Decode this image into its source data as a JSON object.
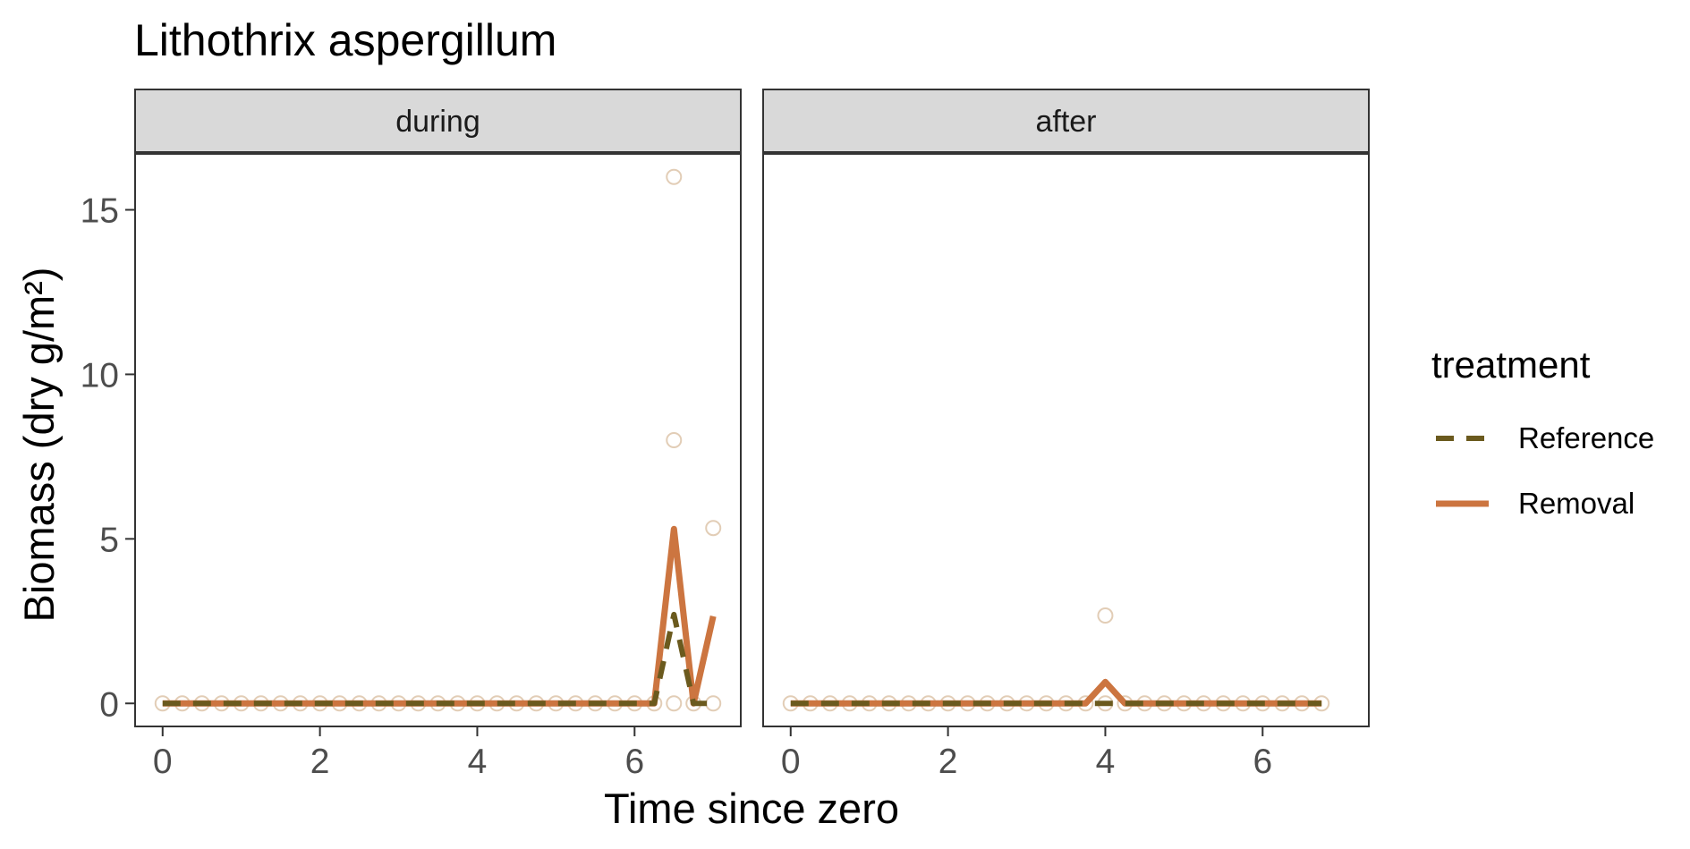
{
  "chart_data": {
    "type": "line",
    "title": "Lithothrix aspergillum",
    "xlabel": "Time since zero",
    "ylabel": "Biomass (dry g/m²)",
    "ylim": [
      -0.7,
      16.7
    ],
    "y_ticks": [
      0,
      5,
      10,
      15
    ],
    "y_tick_labels": [
      "0",
      "5",
      "10",
      "15"
    ],
    "grid": false,
    "colors": {
      "Reference": "#6B5A1E",
      "Removal": "#CC7540",
      "points": "#E2CDB6",
      "strip_bg": "#D9D9D9",
      "strip_border": "#333333",
      "panel_border": "#333333"
    },
    "legend": {
      "title": "treatment",
      "position": "right",
      "entries": [
        {
          "label": "Reference",
          "linetype": "dashed",
          "color": "#6B5A1E"
        },
        {
          "label": "Removal",
          "linetype": "solid",
          "color": "#CC7540"
        }
      ]
    },
    "panels": [
      {
        "strip": "during",
        "xlim": [
          -0.35,
          7.35
        ],
        "x_ticks": [
          0,
          2,
          4,
          6
        ],
        "x_tick_labels": [
          "0",
          "2",
          "4",
          "6"
        ],
        "series": [
          {
            "name": "Reference",
            "x": [
              0,
              0.25,
              0.5,
              0.75,
              1.0,
              1.25,
              1.5,
              1.75,
              2.0,
              2.25,
              2.5,
              2.75,
              3.0,
              3.25,
              3.5,
              3.75,
              4.0,
              4.25,
              4.5,
              4.75,
              5.0,
              5.25,
              5.5,
              5.75,
              6.0,
              6.25,
              6.5,
              6.75,
              7.0
            ],
            "y": [
              0,
              0,
              0,
              0,
              0,
              0,
              0,
              0,
              0,
              0,
              0,
              0,
              0,
              0,
              0,
              0,
              0,
              0,
              0,
              0,
              0,
              0,
              0,
              0,
              0,
              0,
              2.7,
              0,
              0
            ]
          },
          {
            "name": "Removal",
            "x": [
              0,
              0.25,
              0.5,
              0.75,
              1.0,
              1.25,
              1.5,
              1.75,
              2.0,
              2.25,
              2.5,
              2.75,
              3.0,
              3.25,
              3.5,
              3.75,
              4.0,
              4.25,
              4.5,
              4.75,
              5.0,
              5.25,
              5.5,
              5.75,
              6.0,
              6.25,
              6.5,
              6.75,
              7.0
            ],
            "y": [
              0,
              0,
              0,
              0,
              0,
              0,
              0,
              0,
              0,
              0,
              0,
              0,
              0,
              0,
              0,
              0,
              0,
              0,
              0,
              0,
              0,
              0,
              0,
              0,
              0,
              0,
              5.3,
              0,
              2.65
            ]
          }
        ],
        "points": [
          [
            0,
            0
          ],
          [
            0.25,
            0
          ],
          [
            0.5,
            0
          ],
          [
            0.75,
            0
          ],
          [
            1.0,
            0
          ],
          [
            1.25,
            0
          ],
          [
            1.5,
            0
          ],
          [
            1.75,
            0
          ],
          [
            2.0,
            0
          ],
          [
            2.25,
            0
          ],
          [
            2.5,
            0
          ],
          [
            2.75,
            0
          ],
          [
            3.0,
            0
          ],
          [
            3.25,
            0
          ],
          [
            3.5,
            0
          ],
          [
            3.75,
            0
          ],
          [
            4.0,
            0
          ],
          [
            4.25,
            0
          ],
          [
            4.5,
            0
          ],
          [
            4.75,
            0
          ],
          [
            5.0,
            0
          ],
          [
            5.25,
            0
          ],
          [
            5.5,
            0
          ],
          [
            5.75,
            0
          ],
          [
            6.0,
            0
          ],
          [
            6.25,
            0
          ],
          [
            6.5,
            0
          ],
          [
            6.75,
            0
          ],
          [
            7.0,
            0
          ],
          [
            6.5,
            16.0
          ],
          [
            6.5,
            8.0
          ],
          [
            7.0,
            5.33
          ]
        ]
      },
      {
        "strip": "after",
        "xlim": [
          -0.35,
          7.35
        ],
        "x_ticks": [
          0,
          2,
          4,
          6
        ],
        "x_tick_labels": [
          "0",
          "2",
          "4",
          "6"
        ],
        "series": [
          {
            "name": "Reference",
            "x": [
              0,
              0.25,
              0.5,
              0.75,
              1.0,
              1.25,
              1.5,
              1.75,
              2.0,
              2.25,
              2.5,
              2.75,
              3.0,
              3.25,
              3.5,
              3.75,
              4.0,
              4.25,
              4.5,
              4.75,
              5.0,
              5.25,
              5.5,
              5.75,
              6.0,
              6.25,
              6.5,
              6.75
            ],
            "y": [
              0,
              0,
              0,
              0,
              0,
              0,
              0,
              0,
              0,
              0,
              0,
              0,
              0,
              0,
              0,
              0,
              0,
              0,
              0,
              0,
              0,
              0,
              0,
              0,
              0,
              0,
              0,
              0
            ]
          },
          {
            "name": "Removal",
            "x": [
              0,
              0.25,
              0.5,
              0.75,
              1.0,
              1.25,
              1.5,
              1.75,
              2.0,
              2.25,
              2.5,
              2.75,
              3.0,
              3.25,
              3.5,
              3.75,
              4.0,
              4.25,
              4.5,
              4.75,
              5.0,
              5.25,
              5.5,
              5.75,
              6.0,
              6.25,
              6.5,
              6.75
            ],
            "y": [
              0,
              0,
              0,
              0,
              0,
              0,
              0,
              0,
              0,
              0,
              0,
              0,
              0,
              0,
              0,
              0,
              0.65,
              0,
              0,
              0,
              0,
              0,
              0,
              0,
              0,
              0,
              0,
              0
            ]
          }
        ],
        "points": [
          [
            0,
            0
          ],
          [
            0.25,
            0
          ],
          [
            0.5,
            0
          ],
          [
            0.75,
            0
          ],
          [
            1.0,
            0
          ],
          [
            1.25,
            0
          ],
          [
            1.5,
            0
          ],
          [
            1.75,
            0
          ],
          [
            2.0,
            0
          ],
          [
            2.25,
            0
          ],
          [
            2.5,
            0
          ],
          [
            2.75,
            0
          ],
          [
            3.0,
            0
          ],
          [
            3.25,
            0
          ],
          [
            3.5,
            0
          ],
          [
            3.75,
            0
          ],
          [
            4.0,
            0
          ],
          [
            4.25,
            0
          ],
          [
            4.5,
            0
          ],
          [
            4.75,
            0
          ],
          [
            5.0,
            0
          ],
          [
            5.25,
            0
          ],
          [
            5.5,
            0
          ],
          [
            5.75,
            0
          ],
          [
            6.0,
            0
          ],
          [
            6.25,
            0
          ],
          [
            6.5,
            0
          ],
          [
            6.75,
            0
          ],
          [
            4.0,
            2.67
          ]
        ]
      }
    ]
  }
}
